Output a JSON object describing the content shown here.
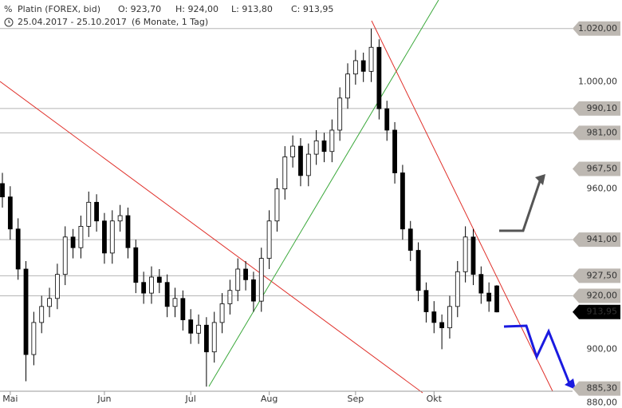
{
  "chart_data": {
    "type": "candlestick",
    "title": "Platin (FOREX, bid)",
    "quote": [
      "O: 923,70",
      "H: 924,00",
      "L: 913,80",
      "C: 913,95"
    ],
    "date_range": "25.04.2017 - 25.10.2017",
    "period": "(6 Monate, 1 Tag)",
    "categories": [
      null,
      "Mai",
      null,
      null,
      null,
      null,
      null,
      null,
      null,
      null,
      null,
      null,
      null,
      "Jun",
      null,
      null,
      null,
      null,
      null,
      null,
      null,
      null,
      null,
      null,
      "Jul",
      null,
      null,
      null,
      null,
      null,
      null,
      null,
      null,
      null,
      "Aug",
      null,
      null,
      null,
      null,
      null,
      null,
      null,
      null,
      null,
      null,
      "Sep",
      null,
      null,
      null,
      null,
      null,
      null,
      null,
      null,
      null,
      "Okt",
      null,
      null,
      null,
      null,
      null,
      null,
      null,
      null
    ],
    "open": [
      962,
      957,
      945,
      930,
      898,
      910,
      916,
      919,
      928,
      942,
      938,
      946,
      955,
      948,
      936,
      948,
      950,
      938,
      925,
      921,
      927,
      925,
      916,
      919,
      911,
      906,
      909,
      899,
      910,
      917,
      922,
      930,
      926,
      918,
      934,
      948,
      960,
      972,
      976,
      965,
      973,
      978,
      974,
      982,
      994,
      1003,
      1008,
      1004,
      1013,
      990,
      982,
      966,
      945,
      937,
      922,
      914,
      910,
      908,
      916,
      929,
      942,
      928,
      921,
      923.7
    ],
    "high": [
      966,
      961,
      949,
      933,
      914,
      920,
      923,
      932,
      946,
      945,
      950,
      959,
      958,
      951,
      952,
      954,
      953,
      941,
      929,
      931,
      930,
      928,
      923,
      922,
      915,
      913,
      912,
      914,
      921,
      926,
      934,
      933,
      929,
      938,
      952,
      964,
      976,
      980,
      979,
      977,
      982,
      981,
      986,
      998,
      1007,
      1012,
      1011,
      1020,
      1016,
      993,
      985,
      969,
      948,
      940,
      925,
      918,
      913,
      920,
      933,
      946,
      945,
      931,
      925,
      924
    ],
    "low": [
      953,
      941,
      926,
      888,
      894,
      906,
      912,
      915,
      924,
      934,
      934,
      942,
      944,
      932,
      932,
      944,
      934,
      921,
      917,
      917,
      921,
      912,
      912,
      907,
      902,
      902,
      886,
      895,
      906,
      913,
      918,
      922,
      914,
      914,
      930,
      944,
      956,
      968,
      961,
      961,
      969,
      970,
      970,
      978,
      990,
      999,
      1000,
      1000,
      986,
      978,
      962,
      941,
      933,
      918,
      910,
      906,
      900,
      904,
      912,
      925,
      924,
      917,
      914,
      913.8
    ],
    "close": [
      957,
      945,
      930,
      898,
      910,
      916,
      919,
      928,
      942,
      938,
      946,
      955,
      948,
      936,
      948,
      950,
      938,
      925,
      921,
      927,
      925,
      916,
      919,
      911,
      906,
      909,
      899,
      910,
      917,
      922,
      930,
      926,
      918,
      934,
      948,
      960,
      972,
      976,
      965,
      973,
      978,
      974,
      982,
      994,
      1003,
      1008,
      1004,
      1013,
      990,
      982,
      966,
      945,
      937,
      922,
      914,
      910,
      908,
      916,
      929,
      942,
      928,
      921,
      918,
      913.95
    ],
    "up_color": "#ffffff",
    "down_color": "#000000",
    "ylim": [
      878,
      1030.7
    ],
    "yticks": [
      {
        "value": 1000,
        "label": "1.000,00"
      },
      {
        "value": 960,
        "label": "960,00"
      },
      {
        "value": 900,
        "label": "900,00"
      },
      {
        "value": 880,
        "label": "880,00"
      }
    ],
    "price_markers": [
      {
        "value": 1020,
        "label": "1.020,00",
        "line": true
      },
      {
        "value": 990.1,
        "label": "990,10",
        "line": true
      },
      {
        "value": 981,
        "label": "981,00",
        "line": true
      },
      {
        "value": 967.5,
        "label": "967,50",
        "line": false
      },
      {
        "value": 941,
        "label": "941,00",
        "line": true
      },
      {
        "value": 927.5,
        "label": "927,50",
        "line": true
      },
      {
        "value": 920,
        "label": "920,00",
        "line": true
      },
      {
        "value": 913.95,
        "label": "913,95",
        "line": false,
        "color": "#000000"
      },
      {
        "value": 885.3,
        "label": "885,30",
        "line": false
      }
    ],
    "marker_color": "#bdb8b2"
  }
}
